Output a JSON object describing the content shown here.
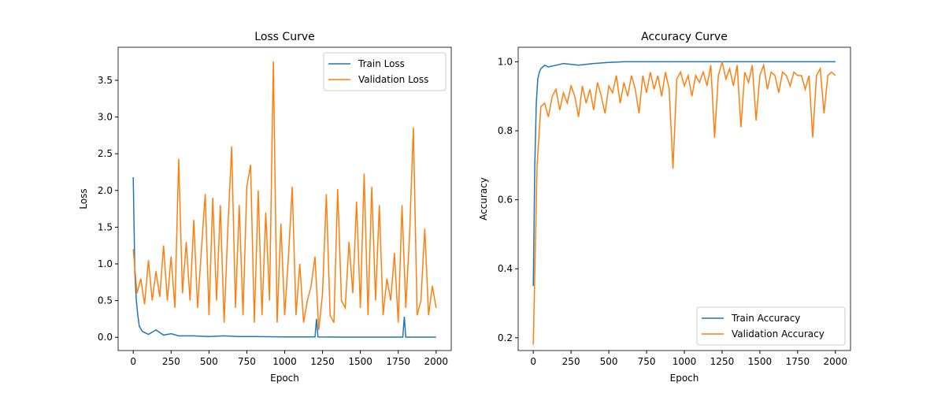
{
  "chart_data": [
    {
      "type": "line",
      "title": "Loss Curve",
      "x_label": "Epoch",
      "y_label": "Loss",
      "xlim": [
        -100,
        2100
      ],
      "ylim": [
        -0.18,
        3.95
      ],
      "xticks": [
        0,
        250,
        500,
        750,
        1000,
        1250,
        1500,
        1750,
        2000
      ],
      "yticks": [
        {
          "value": 0,
          "label": "0.0"
        },
        0.5,
        {
          "value": 1,
          "label": "1.0"
        },
        1.5,
        {
          "value": 2,
          "label": "2.0"
        },
        2.5,
        {
          "value": 3,
          "label": "3.0"
        },
        3.5
      ],
      "legend": "upper right",
      "series": [
        {
          "name": "Train Loss",
          "color": "#1f77b4",
          "x": [
            0,
            10,
            20,
            30,
            40,
            60,
            80,
            100,
            150,
            200,
            250,
            300,
            400,
            500,
            600,
            700,
            800,
            1000,
            1200,
            1210,
            1220,
            1400,
            1600,
            1780,
            1790,
            1800,
            2000
          ],
          "values": [
            2.18,
            0.9,
            0.5,
            0.3,
            0.15,
            0.08,
            0.06,
            0.04,
            0.1,
            0.03,
            0.05,
            0.02,
            0.02,
            0.01,
            0.02,
            0.01,
            0.01,
            0.005,
            0.005,
            0.25,
            0.005,
            0.002,
            0.002,
            0.002,
            0.28,
            0.002,
            0.002
          ]
        },
        {
          "name": "Validation Loss",
          "color": "#ff7f0e",
          "x": [
            0,
            25,
            50,
            75,
            100,
            125,
            150,
            175,
            200,
            225,
            250,
            275,
            300,
            325,
            350,
            375,
            400,
            425,
            450,
            475,
            500,
            525,
            550,
            575,
            600,
            625,
            650,
            675,
            700,
            725,
            750,
            775,
            800,
            825,
            850,
            875,
            900,
            925,
            950,
            975,
            1000,
            1025,
            1050,
            1075,
            1100,
            1125,
            1150,
            1175,
            1200,
            1225,
            1250,
            1275,
            1300,
            1325,
            1350,
            1375,
            1400,
            1425,
            1450,
            1475,
            1500,
            1525,
            1550,
            1575,
            1600,
            1625,
            1650,
            1675,
            1700,
            1725,
            1750,
            1775,
            1800,
            1825,
            1850,
            1875,
            1900,
            1925,
            1950,
            1975,
            2000
          ],
          "values": [
            1.2,
            0.6,
            0.8,
            0.45,
            1.05,
            0.5,
            0.9,
            0.55,
            1.25,
            0.5,
            1.1,
            0.4,
            2.43,
            0.6,
            1.3,
            0.5,
            1.6,
            0.4,
            1.2,
            1.95,
            0.3,
            1.9,
            0.5,
            1.8,
            0.2,
            1.5,
            2.6,
            0.4,
            1.8,
            0.3,
            2.05,
            2.35,
            0.2,
            2.0,
            0.3,
            1.7,
            0.5,
            3.76,
            0.2,
            1.55,
            0.3,
            1.1,
            2.05,
            0.3,
            1.0,
            0.2,
            0.5,
            0.7,
            1.1,
            0.1,
            0.6,
            1.95,
            0.3,
            0.2,
            2.02,
            0.5,
            0.4,
            1.3,
            0.6,
            1.85,
            0.4,
            2.23,
            0.3,
            2.05,
            0.5,
            1.8,
            0.3,
            0.8,
            0.5,
            1.15,
            0.2,
            1.8,
            0.4,
            1.4,
            2.86,
            0.3,
            0.5,
            1.48,
            0.3,
            0.7,
            0.4
          ]
        }
      ]
    },
    {
      "type": "line",
      "title": "Accuracy Curve",
      "x_label": "Epoch",
      "y_label": "Accuracy",
      "xlim": [
        -100,
        2100
      ],
      "ylim": [
        0.163,
        1.042
      ],
      "xticks": [
        0,
        250,
        500,
        750,
        1000,
        1250,
        1500,
        1750,
        2000
      ],
      "yticks": [
        0.2,
        0.4,
        0.6,
        0.8,
        {
          "value": 1,
          "label": "1.0"
        }
      ],
      "legend": "lower right",
      "series": [
        {
          "name": "Train Accuracy",
          "color": "#1f77b4",
          "x": [
            0,
            10,
            20,
            30,
            40,
            50,
            75,
            100,
            150,
            200,
            300,
            400,
            500,
            600,
            700,
            800,
            1000,
            1200,
            1500,
            2000
          ],
          "values": [
            0.35,
            0.7,
            0.88,
            0.95,
            0.97,
            0.98,
            0.99,
            0.985,
            0.99,
            0.995,
            0.99,
            0.995,
            0.998,
            1,
            1,
            1,
            1,
            1,
            1,
            1
          ]
        },
        {
          "name": "Validation Accuracy",
          "color": "#ff7f0e",
          "x": [
            0,
            25,
            50,
            75,
            100,
            125,
            150,
            175,
            200,
            225,
            250,
            275,
            300,
            325,
            350,
            375,
            400,
            425,
            450,
            475,
            500,
            525,
            550,
            575,
            600,
            625,
            650,
            675,
            700,
            725,
            750,
            775,
            800,
            825,
            850,
            875,
            900,
            925,
            950,
            975,
            1000,
            1025,
            1050,
            1075,
            1100,
            1125,
            1150,
            1175,
            1200,
            1225,
            1250,
            1275,
            1300,
            1325,
            1350,
            1375,
            1400,
            1425,
            1450,
            1475,
            1500,
            1525,
            1550,
            1575,
            1600,
            1625,
            1650,
            1675,
            1700,
            1725,
            1750,
            1775,
            1800,
            1825,
            1850,
            1875,
            1900,
            1925,
            1950,
            1975,
            2000
          ],
          "values": [
            0.18,
            0.7,
            0.87,
            0.88,
            0.84,
            0.9,
            0.92,
            0.86,
            0.91,
            0.88,
            0.93,
            0.9,
            0.84,
            0.93,
            0.88,
            0.92,
            0.86,
            0.94,
            0.9,
            0.85,
            0.93,
            0.91,
            0.96,
            0.88,
            0.94,
            0.9,
            0.96,
            0.92,
            0.85,
            0.96,
            0.91,
            0.97,
            0.92,
            0.96,
            0.9,
            0.97,
            0.92,
            0.69,
            0.95,
            0.97,
            0.93,
            0.96,
            0.9,
            0.96,
            0.94,
            0.97,
            0.93,
            0.99,
            0.78,
            0.96,
            1.0,
            0.95,
            0.98,
            0.93,
            0.99,
            0.81,
            0.97,
            0.94,
            0.99,
            0.83,
            0.96,
            0.99,
            0.92,
            0.97,
            0.96,
            0.91,
            0.97,
            0.96,
            0.93,
            0.97,
            0.96,
            0.96,
            0.92,
            0.96,
            0.78,
            0.96,
            0.98,
            0.85,
            0.96,
            0.97,
            0.96
          ]
        }
      ]
    }
  ]
}
